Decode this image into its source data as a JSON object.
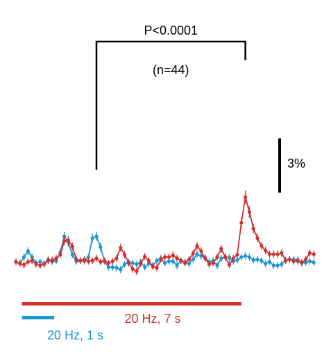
{
  "chart_data": {
    "type": "line",
    "title": "",
    "xlabel": "",
    "ylabel": "",
    "x_unit_note": "",
    "series": [
      {
        "name": "",
        "color": "#1a96d2",
        "points": [
          {
            "x": 0,
            "y": 0.0
          },
          {
            "x": 1,
            "y": -0.2
          },
          {
            "x": 2,
            "y": 0.8
          },
          {
            "x": 3,
            "y": 1.8
          },
          {
            "x": 4,
            "y": 0.8
          },
          {
            "x": 5,
            "y": -0.2
          },
          {
            "x": 6,
            "y": 0.0
          },
          {
            "x": 7,
            "y": -0.3
          },
          {
            "x": 8,
            "y": 0.4
          },
          {
            "x": 9,
            "y": 0.0
          },
          {
            "x": 10,
            "y": 0.2
          },
          {
            "x": 11,
            "y": 1.6
          },
          {
            "x": 12,
            "y": 4.3
          },
          {
            "x": 13,
            "y": 3.3
          },
          {
            "x": 14,
            "y": 1.2
          },
          {
            "x": 15,
            "y": 0.1
          },
          {
            "x": 16,
            "y": 0.2
          },
          {
            "x": 17,
            "y": 0.1
          },
          {
            "x": 18,
            "y": 0.8
          },
          {
            "x": 19,
            "y": 4.0
          },
          {
            "x": 20,
            "y": 4.3
          },
          {
            "x": 21,
            "y": 2.5
          },
          {
            "x": 22,
            "y": 0.1
          },
          {
            "x": 23,
            "y": -0.9
          },
          {
            "x": 24,
            "y": -0.9
          },
          {
            "x": 25,
            "y": -1.0
          },
          {
            "x": 26,
            "y": -1.3
          },
          {
            "x": 27,
            "y": -0.4
          },
          {
            "x": 28,
            "y": 0.0
          },
          {
            "x": 29,
            "y": -0.2
          },
          {
            "x": 30,
            "y": -0.4
          },
          {
            "x": 31,
            "y": 0.0
          },
          {
            "x": 32,
            "y": -0.9
          },
          {
            "x": 33,
            "y": -0.3
          },
          {
            "x": 34,
            "y": -0.6
          },
          {
            "x": 35,
            "y": 0.2
          },
          {
            "x": 36,
            "y": 0.6
          },
          {
            "x": 37,
            "y": -0.2
          },
          {
            "x": 38,
            "y": 0.1
          },
          {
            "x": 39,
            "y": 0.1
          },
          {
            "x": 40,
            "y": -0.6
          },
          {
            "x": 41,
            "y": 0.2
          },
          {
            "x": 42,
            "y": 0.0
          },
          {
            "x": 43,
            "y": -0.3
          },
          {
            "x": 44,
            "y": 0.4
          },
          {
            "x": 45,
            "y": 1.3
          },
          {
            "x": 46,
            "y": 1.0
          },
          {
            "x": 47,
            "y": 0.7
          },
          {
            "x": 48,
            "y": 0.0
          },
          {
            "x": 49,
            "y": 0.2
          },
          {
            "x": 50,
            "y": -0.6
          },
          {
            "x": 51,
            "y": 0.6
          },
          {
            "x": 52,
            "y": 0.8
          },
          {
            "x": 53,
            "y": 0.7
          },
          {
            "x": 54,
            "y": 0.1
          },
          {
            "x": 55,
            "y": 0.3
          },
          {
            "x": 56,
            "y": 0.8
          },
          {
            "x": 57,
            "y": 1.0
          },
          {
            "x": 58,
            "y": 0.8
          },
          {
            "x": 59,
            "y": 0.3
          },
          {
            "x": 60,
            "y": 0.4
          },
          {
            "x": 61,
            "y": 0.2
          },
          {
            "x": 62,
            "y": -0.3
          },
          {
            "x": 63,
            "y": 0.0
          },
          {
            "x": 64,
            "y": -0.6
          },
          {
            "x": 65,
            "y": -0.6
          },
          {
            "x": 66,
            "y": -0.4
          },
          {
            "x": 67,
            "y": 0.3
          },
          {
            "x": 68,
            "y": 0.4
          },
          {
            "x": 69,
            "y": 0.4
          },
          {
            "x": 70,
            "y": 0.1
          },
          {
            "x": 71,
            "y": -0.2
          },
          {
            "x": 72,
            "y": -0.1
          },
          {
            "x": 73,
            "y": 0.1
          },
          {
            "x": 74,
            "y": -0.1
          }
        ]
      },
      {
        "name": "",
        "color": "#d32f2f",
        "points": [
          {
            "x": 0,
            "y": 0.0
          },
          {
            "x": 1,
            "y": -0.3
          },
          {
            "x": 2,
            "y": -0.5
          },
          {
            "x": 3,
            "y": 0.0
          },
          {
            "x": 4,
            "y": 0.2
          },
          {
            "x": 5,
            "y": -0.4
          },
          {
            "x": 6,
            "y": -0.6
          },
          {
            "x": 7,
            "y": -0.4
          },
          {
            "x": 8,
            "y": 0.2
          },
          {
            "x": 9,
            "y": 0.3
          },
          {
            "x": 10,
            "y": 0.6
          },
          {
            "x": 11,
            "y": 1.2
          },
          {
            "x": 12,
            "y": 3.5
          },
          {
            "x": 13,
            "y": 3.6
          },
          {
            "x": 14,
            "y": 2.6
          },
          {
            "x": 15,
            "y": 0.4
          },
          {
            "x": 16,
            "y": 0.2
          },
          {
            "x": 17,
            "y": 0.4
          },
          {
            "x": 18,
            "y": 0.1
          },
          {
            "x": 19,
            "y": 0.2
          },
          {
            "x": 20,
            "y": 0.6
          },
          {
            "x": 21,
            "y": 0.0
          },
          {
            "x": 22,
            "y": 0.2
          },
          {
            "x": 23,
            "y": -0.2
          },
          {
            "x": 24,
            "y": 0.1
          },
          {
            "x": 25,
            "y": 0.6
          },
          {
            "x": 26,
            "y": 2.4
          },
          {
            "x": 27,
            "y": 1.2
          },
          {
            "x": 28,
            "y": -0.2
          },
          {
            "x": 29,
            "y": -1.2
          },
          {
            "x": 30,
            "y": -1.6
          },
          {
            "x": 31,
            "y": -0.3
          },
          {
            "x": 32,
            "y": 0.9
          },
          {
            "x": 33,
            "y": 0.2
          },
          {
            "x": 34,
            "y": -0.8
          },
          {
            "x": 35,
            "y": -1.0
          },
          {
            "x": 36,
            "y": 0.4
          },
          {
            "x": 37,
            "y": 0.8
          },
          {
            "x": 38,
            "y": 0.8
          },
          {
            "x": 39,
            "y": 1.1
          },
          {
            "x": 40,
            "y": 0.6
          },
          {
            "x": 41,
            "y": 0.2
          },
          {
            "x": 42,
            "y": -0.2
          },
          {
            "x": 43,
            "y": 0.4
          },
          {
            "x": 44,
            "y": 1.4
          },
          {
            "x": 45,
            "y": 2.7
          },
          {
            "x": 46,
            "y": 1.8
          },
          {
            "x": 47,
            "y": 0.6
          },
          {
            "x": 48,
            "y": -0.4
          },
          {
            "x": 49,
            "y": -0.2
          },
          {
            "x": 50,
            "y": 0.8
          },
          {
            "x": 51,
            "y": 2.2
          },
          {
            "x": 52,
            "y": 0.8
          },
          {
            "x": 53,
            "y": -0.5
          },
          {
            "x": 54,
            "y": 0.6
          },
          {
            "x": 55,
            "y": 1.2
          },
          {
            "x": 56,
            "y": 6.6
          },
          {
            "x": 57,
            "y": 10.9
          },
          {
            "x": 58,
            "y": 8.4
          },
          {
            "x": 59,
            "y": 5.6
          },
          {
            "x": 60,
            "y": 4.0
          },
          {
            "x": 61,
            "y": 2.7
          },
          {
            "x": 62,
            "y": 1.9
          },
          {
            "x": 63,
            "y": 1.3
          },
          {
            "x": 64,
            "y": 1.3
          },
          {
            "x": 65,
            "y": 1.3
          },
          {
            "x": 66,
            "y": 1.5
          },
          {
            "x": 67,
            "y": 0.2
          },
          {
            "x": 68,
            "y": 0.4
          },
          {
            "x": 69,
            "y": 0.1
          },
          {
            "x": 70,
            "y": 0.3
          },
          {
            "x": 71,
            "y": -0.1
          },
          {
            "x": 72,
            "y": 0.4
          },
          {
            "x": 73,
            "y": 1.5
          },
          {
            "x": 74,
            "y": 1.3
          }
        ]
      }
    ],
    "x_range": [
      0,
      74
    ],
    "ylim": [
      -3.0,
      12.6
    ],
    "grid": false,
    "legend": "none",
    "scale_bar": {
      "value": 3,
      "label": "3%"
    },
    "stimulus_bars": [
      {
        "label": "20 Hz, 7 s",
        "x_start": 1.5,
        "x_end": 56.0,
        "color": "#d32f2f"
      },
      {
        "label": "20 Hz, 1 s",
        "x_start": 1.5,
        "x_end": 9.5,
        "color": "#1a96d2"
      }
    ],
    "comparison": {
      "p_label": "P<0.0001",
      "n_label": "(n=44)",
      "x_left": 20,
      "x_right": 57
    }
  }
}
